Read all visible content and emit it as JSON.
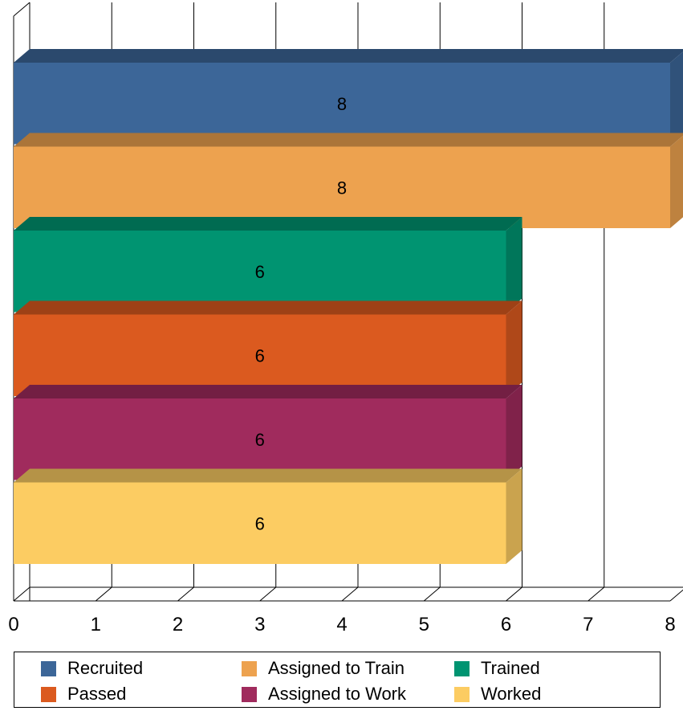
{
  "chart_data": {
    "type": "bar",
    "orientation": "horizontal",
    "style": "3d",
    "title": "",
    "xlabel": "",
    "ylabel": "",
    "xlim": [
      0,
      8
    ],
    "x_ticks": [
      "0",
      "1",
      "2",
      "3",
      "4",
      "5",
      "6",
      "7",
      "8"
    ],
    "grid": true,
    "legend_position": "bottom",
    "series": [
      {
        "name": "Recruited",
        "value": 8,
        "label": "8",
        "color": "#3C6698"
      },
      {
        "name": "Assigned to Train",
        "value": 8,
        "label": "8",
        "color": "#EDA24F"
      },
      {
        "name": "Trained",
        "value": 6,
        "label": "6",
        "color": "#009471"
      },
      {
        "name": "Passed",
        "value": 6,
        "label": "6",
        "color": "#DB5A1F"
      },
      {
        "name": "Assigned to Work",
        "value": 6,
        "label": "6",
        "color": "#A02B5D"
      },
      {
        "name": "Worked",
        "value": 6,
        "label": "6",
        "color": "#FCCC62"
      }
    ]
  }
}
